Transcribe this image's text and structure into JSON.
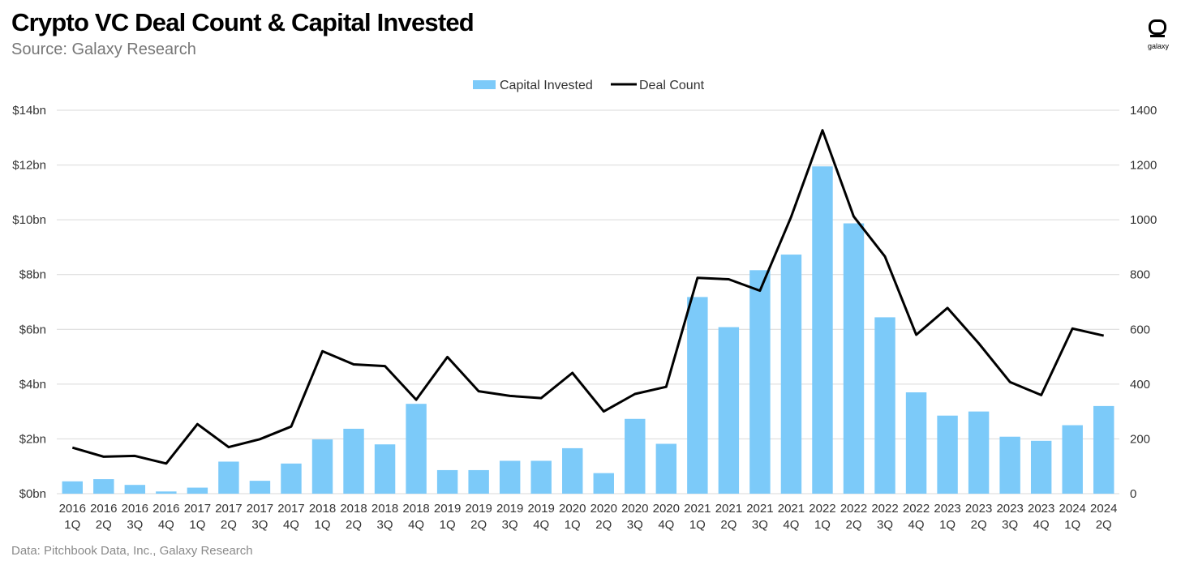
{
  "header": {
    "title": "Crypto VC Deal Count & Capital Invested",
    "subtitle": "Source: Galaxy Research",
    "logo_text": "galaxy"
  },
  "footer": {
    "note": "Data: Pitchbook Data, Inc., Galaxy Research"
  },
  "colors": {
    "bar": "#7ccaf9",
    "line": "#000000",
    "grid": "#d9d9d9"
  },
  "chart_data": {
    "type": "bar",
    "title": "Crypto VC Deal Count & Capital Invested",
    "subtitle": "Source: Galaxy Research",
    "legend_position": "top",
    "grid": true,
    "categories": [
      [
        "2016",
        "1Q"
      ],
      [
        "2016",
        "2Q"
      ],
      [
        "2016",
        "3Q"
      ],
      [
        "2016",
        "4Q"
      ],
      [
        "2017",
        "1Q"
      ],
      [
        "2017",
        "2Q"
      ],
      [
        "2017",
        "3Q"
      ],
      [
        "2017",
        "4Q"
      ],
      [
        "2018",
        "1Q"
      ],
      [
        "2018",
        "2Q"
      ],
      [
        "2018",
        "3Q"
      ],
      [
        "2018",
        "4Q"
      ],
      [
        "2019",
        "1Q"
      ],
      [
        "2019",
        "2Q"
      ],
      [
        "2019",
        "3Q"
      ],
      [
        "2019",
        "4Q"
      ],
      [
        "2020",
        "1Q"
      ],
      [
        "2020",
        "2Q"
      ],
      [
        "2020",
        "3Q"
      ],
      [
        "2020",
        "4Q"
      ],
      [
        "2021",
        "1Q"
      ],
      [
        "2021",
        "2Q"
      ],
      [
        "2021",
        "3Q"
      ],
      [
        "2021",
        "4Q"
      ],
      [
        "2022",
        "1Q"
      ],
      [
        "2022",
        "2Q"
      ],
      [
        "2022",
        "3Q"
      ],
      [
        "2022",
        "4Q"
      ],
      [
        "2023",
        "1Q"
      ],
      [
        "2023",
        "2Q"
      ],
      [
        "2023",
        "3Q"
      ],
      [
        "2023",
        "4Q"
      ],
      [
        "2024",
        "1Q"
      ],
      [
        "2024",
        "2Q"
      ]
    ],
    "series": [
      {
        "name": "Capital Invested",
        "type": "bar",
        "axis": "left",
        "values": [
          0.45,
          0.53,
          0.32,
          0.08,
          0.22,
          1.17,
          0.47,
          1.1,
          1.98,
          2.37,
          1.8,
          3.28,
          0.86,
          0.86,
          1.2,
          1.2,
          1.66,
          0.75,
          2.73,
          1.82,
          7.18,
          6.08,
          8.16,
          8.73,
          11.95,
          9.87,
          6.44,
          3.7,
          2.85,
          3.0,
          2.08,
          1.93,
          2.5,
          3.2
        ]
      },
      {
        "name": "Deal Count",
        "type": "line",
        "axis": "right",
        "values": [
          168,
          135,
          138,
          110,
          254,
          170,
          199,
          245,
          520,
          472,
          466,
          343,
          499,
          374,
          357,
          349,
          441,
          300,
          364,
          390,
          788,
          783,
          741,
          1011,
          1327,
          1012,
          866,
          580,
          678,
          549,
          408,
          360,
          603,
          577
        ]
      }
    ],
    "y_left": {
      "ylim": [
        0,
        14
      ],
      "ticks": [
        0,
        2,
        4,
        6,
        8,
        10,
        12,
        14
      ],
      "tick_labels": [
        "$0bn",
        "$2bn",
        "$4bn",
        "$6bn",
        "$8bn",
        "$10bn",
        "$12bn",
        "$14bn"
      ]
    },
    "y_right": {
      "ylim": [
        0,
        1400
      ],
      "ticks": [
        0,
        200,
        400,
        600,
        800,
        1000,
        1200,
        1400
      ],
      "tick_labels": [
        "0",
        "200",
        "400",
        "600",
        "800",
        "1000",
        "1200",
        "1400"
      ]
    }
  }
}
